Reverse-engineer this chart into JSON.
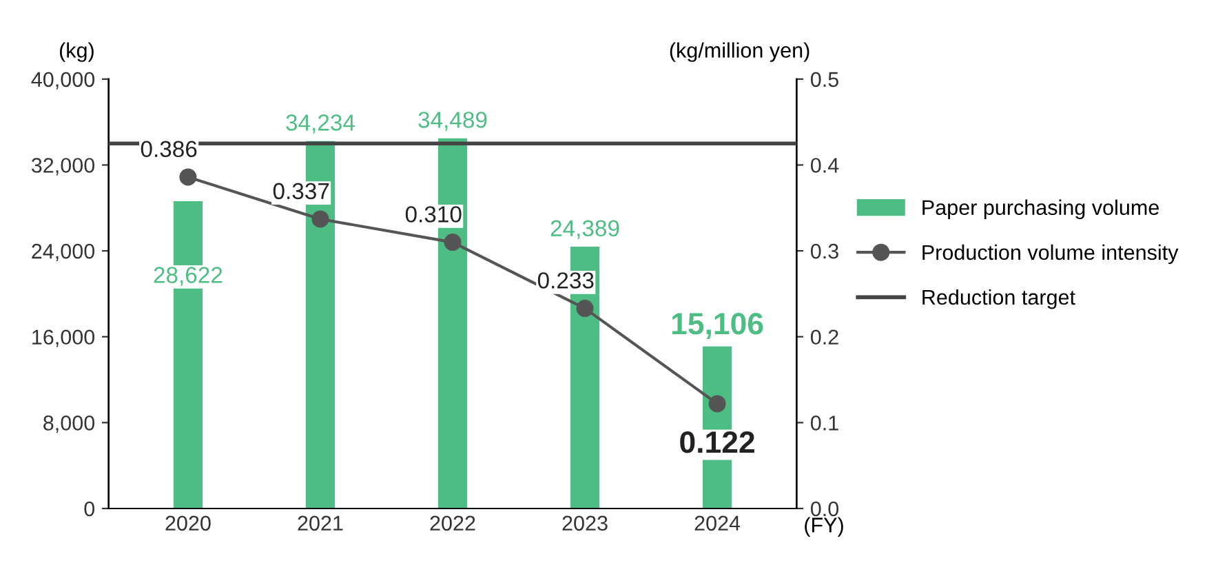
{
  "chart_data": {
    "type": "bar",
    "categories": [
      "2020",
      "2021",
      "2022",
      "2023",
      "2024"
    ],
    "xlabel": "(FY)",
    "ylabel": "(kg)",
    "y2label": "(kg/million yen)",
    "series": [
      {
        "name": "Paper purchasing volume",
        "color": "#4dbd84",
        "values": [
          28622,
          34234,
          34489,
          24389,
          15106
        ],
        "value_labels": [
          "28,622",
          "34,234",
          "34,489",
          "24,389",
          "15,106"
        ]
      },
      {
        "name": "Production volume intensity",
        "type": "line",
        "axis": "y2",
        "color": "#555555",
        "marker": "circle",
        "values": [
          0.386,
          0.337,
          0.31,
          0.233,
          0.122
        ],
        "value_labels": [
          "0.386",
          "0.337",
          "0.310",
          "0.233",
          "0.122"
        ]
      }
    ],
    "ref_lines": [
      {
        "axis": "y",
        "value": 34000,
        "label": "Reduction target",
        "color": "#444444"
      }
    ],
    "ylim": [
      0,
      40000
    ],
    "yticks": [
      {
        "value": 0,
        "label": "0"
      },
      {
        "value": 8000,
        "label": "8,000"
      },
      {
        "value": 16000,
        "label": "16,000"
      },
      {
        "value": 24000,
        "label": "24,000"
      },
      {
        "value": 32000,
        "label": "32,000"
      },
      {
        "value": 40000,
        "label": "40,000"
      }
    ],
    "y2lim": [
      0,
      0.5
    ],
    "y2ticks": [
      {
        "value": 0,
        "label": "0.0"
      },
      {
        "value": 0.1,
        "label": "0.1"
      },
      {
        "value": 0.2,
        "label": "0.2"
      },
      {
        "value": 0.3,
        "label": "0.3"
      },
      {
        "value": 0.4,
        "label": "0.4"
      },
      {
        "value": 0.5,
        "label": "0.5"
      }
    ],
    "grid": false,
    "legend": "right"
  }
}
